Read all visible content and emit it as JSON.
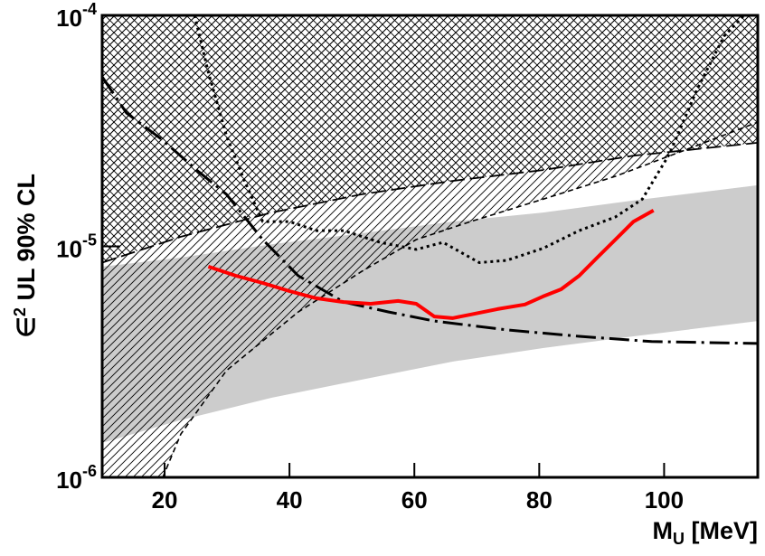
{
  "chart_data": {
    "type": "line",
    "x_label": {
      "base": "M",
      "sub": "U",
      "rest": " [MeV]"
    },
    "y_label": {
      "base": "∈",
      "sup": "2",
      "rest": " UL 90% CL"
    },
    "xlim": [
      10,
      115
    ],
    "xticks": [
      20,
      40,
      60,
      80,
      100
    ],
    "ylim": [
      1e-06,
      0.0001
    ],
    "yticks": [
      {
        "value": 1e-06,
        "label": "10",
        "exponent": "-6"
      },
      {
        "value": 1e-05,
        "label": "10",
        "exponent": "-5"
      },
      {
        "value": 0.0001,
        "label": "10",
        "exponent": "-4"
      }
    ],
    "log_y": true,
    "bands": [
      {
        "color": "#cccccc",
        "x": [
          10,
          22.6,
          37.1,
          51.6,
          66.1,
          80.6,
          95.1,
          115
        ],
        "upper": [
          8.17e-06,
          8.94e-06,
          1.02e-05,
          1.14e-05,
          1.28e-05,
          1.4e-05,
          1.58e-05,
          1.84e-05
        ],
        "lower": [
          1.41e-06,
          1.77e-06,
          2.21e-06,
          2.65e-06,
          3.17e-06,
          3.63e-06,
          4.08e-06,
          4.75e-06
        ]
      }
    ],
    "series": [
      {
        "color": "#000000",
        "style": "dashed",
        "fill": "hatch-left",
        "x": [
          19.7,
          22.6,
          29.9,
          41.4,
          51.6,
          60.3,
          69.0,
          80.6,
          92.2,
          103.8,
          115
        ],
        "values": [
          1e-06,
          1.54e-06,
          2.9e-06,
          5.2e-06,
          7.8e-06,
          1.07e-05,
          1.28e-05,
          1.6e-05,
          2.01e-05,
          2.64e-05,
          3.45e-05
        ]
      },
      {
        "color": "#000000",
        "style": "longdash",
        "fill": "crosshatch-above",
        "x": [
          10,
          22.6,
          37.1,
          51.6,
          66.1,
          80.6,
          95.1,
          115
        ],
        "values": [
          8.5e-06,
          1.1e-05,
          1.4e-05,
          1.68e-05,
          1.92e-05,
          2.14e-05,
          2.47e-05,
          2.81e-05
        ]
      },
      {
        "color": "#000000",
        "style": "dotted",
        "x": [
          24.8,
          27.0,
          29.9,
          32.8,
          35.7,
          40.0,
          44.3,
          48.7,
          54.5,
          60.3,
          64.6,
          70.4,
          74.8,
          80.6,
          86.4,
          92.2,
          96.5,
          100.9,
          105.2,
          109.6,
          112.8
        ],
        "values": [
          0.0001,
          5.67e-05,
          3.02e-05,
          1.92e-05,
          1.28e-05,
          1.28e-05,
          1.17e-05,
          1.17e-05,
          1.04e-05,
          9.7e-06,
          1.04e-05,
          8.5e-06,
          8.7e-06,
          9.8e-06,
          1.17e-05,
          1.34e-05,
          1.6e-05,
          2.52e-05,
          4.73e-05,
          8.13e-05,
          0.0001
        ]
      },
      {
        "color": "#000000",
        "style": "dashdot",
        "x": [
          10,
          13.9,
          19.7,
          25.5,
          29.9,
          35.7,
          41.4,
          48.7,
          55.9,
          63.2,
          74.8,
          86.4,
          98.0,
          115
        ],
        "values": [
          5.42e-05,
          3.78e-05,
          2.88e-05,
          2.1e-05,
          1.68e-05,
          1.07e-05,
          7.46e-06,
          5.74e-06,
          5.2e-06,
          4.75e-06,
          4.35e-06,
          4.08e-06,
          3.87e-06,
          3.8e-06
        ]
      },
      {
        "color": "#ff0000",
        "style": "solid",
        "x": [
          27.0,
          31.4,
          35.7,
          40.0,
          44.3,
          48.7,
          53.0,
          57.4,
          60.3,
          63.2,
          66.1,
          69.0,
          73.3,
          77.7,
          80.6,
          83.5,
          86.4,
          89.3,
          92.2,
          95.1,
          98.3
        ],
        "values": [
          8.17e-06,
          7.46e-06,
          6.94e-06,
          6.4e-06,
          5.96e-06,
          5.74e-06,
          5.64e-06,
          5.8e-06,
          5.64e-06,
          4.97e-06,
          4.89e-06,
          5.07e-06,
          5.35e-06,
          5.6e-06,
          6.07e-06,
          6.52e-06,
          7.46e-06,
          8.94e-06,
          1.07e-05,
          1.28e-05,
          1.43e-05
        ]
      }
    ]
  }
}
